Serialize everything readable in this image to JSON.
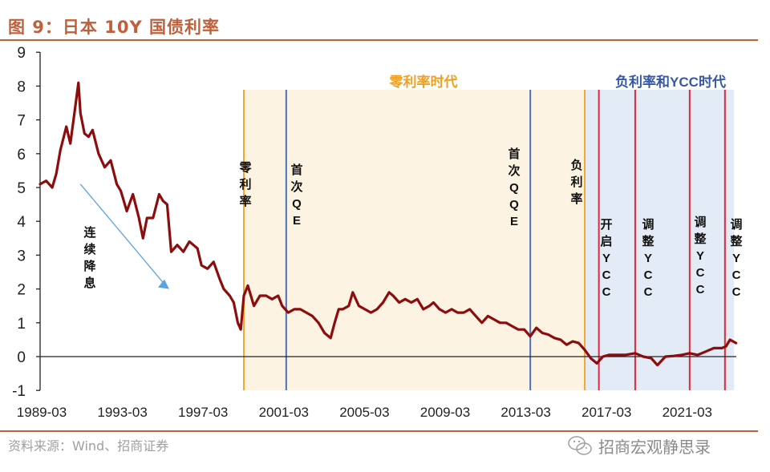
{
  "header": {
    "title": "图 9：日本 10Y 国债利率"
  },
  "footer": {
    "source": "资料来源：Wind、招商证券",
    "watermark": "招商宏观静思录",
    "watermark_icon": "wechat-icon"
  },
  "colors": {
    "title": "#c0603a",
    "line": "#8b0d0d",
    "zero_era_fill": "#fdf3e2",
    "neg_era_fill": "#e3ebf6",
    "orange_marker": "#f0a830",
    "blue_marker": "#4a72b8",
    "red_marker": "#e02a3a",
    "arrow": "#5ba3e0"
  },
  "annotations": {
    "era_zero": "零利率时代",
    "era_neg": "负利率和YCC时代",
    "trend": "连续降息",
    "zero_rate": "零利率",
    "first_qe": "首次QE",
    "first_qqe": "首次QQE",
    "neg_rate": "负利率",
    "start_ycc": "开启YCC",
    "adjust_ycc_1": "调整YCC",
    "adjust_ycc_2": "调整YCC",
    "adjust_ycc_3": "调整YCC"
  },
  "chart_data": {
    "type": "line",
    "title": "日本 10Y 国债利率",
    "xlabel": "",
    "ylabel": "",
    "ylim": [
      -1,
      9
    ],
    "yticks": [
      -1,
      0,
      1,
      2,
      3,
      4,
      5,
      6,
      7,
      8,
      9
    ],
    "xticks": [
      "1989-03",
      "1993-03",
      "1997-03",
      "2001-03",
      "2005-03",
      "2009-03",
      "2013-03",
      "2017-03",
      "2021-03"
    ],
    "grid": false,
    "legend": "none",
    "series": [
      {
        "name": "日本10Y国债利率",
        "x": [
          1989.0,
          1989.3,
          1989.6,
          1989.8,
          1990.0,
          1990.3,
          1990.5,
          1990.7,
          1990.9,
          1991.0,
          1991.2,
          1991.4,
          1991.6,
          1991.9,
          1992.2,
          1992.5,
          1992.8,
          1993.0,
          1993.3,
          1993.6,
          1993.9,
          1994.1,
          1994.3,
          1994.6,
          1994.9,
          1995.1,
          1995.3,
          1995.5,
          1995.8,
          1996.1,
          1996.4,
          1996.6,
          1996.8,
          1997.0,
          1997.3,
          1997.6,
          1997.9,
          1998.1,
          1998.4,
          1998.6,
          1998.8,
          1998.95,
          1999.1,
          1999.3,
          1999.6,
          1999.9,
          2000.2,
          2000.5,
          2000.8,
          2001.0,
          2001.3,
          2001.6,
          2001.9,
          2002.2,
          2002.5,
          2002.8,
          2003.1,
          2003.4,
          2003.6,
          2003.8,
          2004.0,
          2004.3,
          2004.5,
          2004.8,
          2005.1,
          2005.4,
          2005.7,
          2006.0,
          2006.3,
          2006.5,
          2006.8,
          2007.1,
          2007.4,
          2007.7,
          2008.0,
          2008.3,
          2008.5,
          2008.8,
          2009.1,
          2009.4,
          2009.7,
          2010.0,
          2010.3,
          2010.6,
          2010.9,
          2011.2,
          2011.5,
          2011.8,
          2012.1,
          2012.4,
          2012.7,
          2013.0,
          2013.3,
          2013.6,
          2013.9,
          2014.2,
          2014.5,
          2014.8,
          2015.1,
          2015.4,
          2015.7,
          2016.0,
          2016.3,
          2016.6,
          2016.9,
          2017.2,
          2017.6,
          2018.0,
          2018.5,
          2018.9,
          2019.3,
          2019.6,
          2020.0,
          2020.4,
          2020.8,
          2021.2,
          2021.6,
          2022.0,
          2022.4,
          2022.8,
          2023.0,
          2023.2,
          2023.5
        ],
        "values": [
          5.1,
          5.2,
          5.0,
          5.4,
          6.1,
          6.8,
          6.3,
          7.2,
          8.1,
          7.2,
          6.6,
          6.5,
          6.7,
          6.0,
          5.6,
          5.8,
          5.1,
          4.9,
          4.3,
          4.8,
          4.1,
          3.5,
          4.1,
          4.1,
          4.8,
          4.6,
          4.5,
          3.1,
          3.3,
          3.1,
          3.4,
          3.3,
          3.2,
          2.7,
          2.6,
          2.8,
          2.3,
          2.0,
          1.8,
          1.6,
          1.0,
          0.8,
          1.8,
          2.1,
          1.5,
          1.8,
          1.8,
          1.7,
          1.8,
          1.5,
          1.3,
          1.4,
          1.4,
          1.3,
          1.2,
          1.0,
          0.7,
          0.55,
          1.0,
          1.4,
          1.4,
          1.5,
          1.9,
          1.5,
          1.4,
          1.3,
          1.4,
          1.6,
          1.9,
          1.8,
          1.6,
          1.7,
          1.6,
          1.7,
          1.4,
          1.5,
          1.6,
          1.4,
          1.3,
          1.4,
          1.3,
          1.3,
          1.4,
          1.2,
          1.0,
          1.2,
          1.1,
          1.0,
          1.0,
          0.9,
          0.8,
          0.8,
          0.6,
          0.85,
          0.7,
          0.65,
          0.55,
          0.5,
          0.35,
          0.45,
          0.4,
          0.2,
          -0.05,
          -0.2,
          0.0,
          0.05,
          0.05,
          0.05,
          0.1,
          0.0,
          -0.05,
          -0.25,
          0.0,
          0.02,
          0.05,
          0.1,
          0.05,
          0.15,
          0.25,
          0.25,
          0.3,
          0.5,
          0.4
        ]
      }
    ],
    "regions": [
      {
        "label": "零利率时代",
        "from": 1999.1,
        "to": 2016.0,
        "color": "#fdf3e2"
      },
      {
        "label": "负利率和YCC时代",
        "from": 2016.0,
        "to": 2023.4,
        "color": "#e3ebf6"
      }
    ],
    "vlines": [
      {
        "label": "零利率",
        "x": 1999.1,
        "color": "#f0a830"
      },
      {
        "label": "首次QE",
        "x": 2001.2,
        "color": "#4a72b8"
      },
      {
        "label": "首次QQE",
        "x": 2013.3,
        "color": "#4a72b8"
      },
      {
        "label": "负利率",
        "x": 2016.0,
        "color": "#f0a830"
      },
      {
        "label": "开启YCC",
        "x": 2016.7,
        "color": "#e02a3a"
      },
      {
        "label": "调整YCC",
        "x": 2018.5,
        "color": "#e02a3a"
      },
      {
        "label": "调整YCC",
        "x": 2021.2,
        "color": "#e02a3a"
      },
      {
        "label": "调整YCC",
        "x": 2022.95,
        "color": "#e02a3a"
      }
    ],
    "annotations": [
      {
        "text": "连续降息",
        "type": "arrow",
        "from": [
          1991.0,
          5.1
        ],
        "to": [
          1995.4,
          2.0
        ]
      }
    ]
  }
}
